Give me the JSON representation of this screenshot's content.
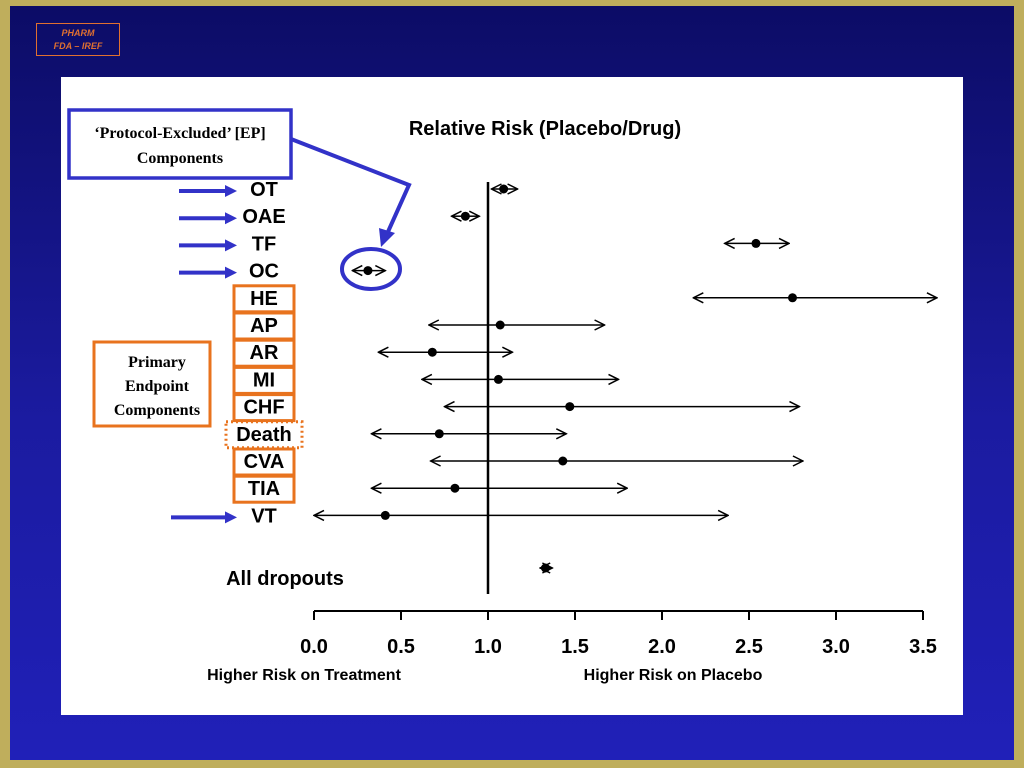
{
  "badge": {
    "line1": "PHARM",
    "line2": "FDA – IREF"
  },
  "callouts": {
    "protocol_excluded": {
      "line1": "‘Protocol-Excluded’ [EP]",
      "line2": "Components"
    },
    "primary_endpoint": {
      "line1": "Primary",
      "line2": "Endpoint",
      "line3": "Components"
    }
  },
  "colors": {
    "background": "#1b1ba0",
    "frame": "#bfae5c",
    "excluded_marker": "#3232c8",
    "primary_marker": "#e8731e"
  },
  "chart_data": {
    "type": "forest",
    "title": "Relative Risk (Placebo/Drug)",
    "xlim": [
      0.0,
      3.5
    ],
    "ticks": [
      "0.0",
      "0.5",
      "1.0",
      "1.5",
      "2.0",
      "2.5",
      "3.0",
      "3.5"
    ],
    "reference_line": 1.0,
    "xlabel_left": "Higher Risk on Treatment",
    "xlabel_right": "Higher Risk on Placebo",
    "rows": [
      {
        "label": "OT",
        "estimate": 1.09,
        "low": 1.02,
        "high": 1.17,
        "group": "excluded"
      },
      {
        "label": "OAE",
        "estimate": 0.87,
        "low": 0.79,
        "high": 0.95,
        "group": "excluded"
      },
      {
        "label": "TF",
        "estimate": 2.54,
        "low": 2.36,
        "high": 2.73,
        "group": "excluded"
      },
      {
        "label": "OC",
        "estimate": 0.31,
        "low": 0.22,
        "high": 0.41,
        "group": "excluded"
      },
      {
        "label": "HE",
        "estimate": 2.75,
        "low": 2.18,
        "high": 3.58,
        "group": "primary"
      },
      {
        "label": "AP",
        "estimate": 1.07,
        "low": 0.66,
        "high": 1.67,
        "group": "primary"
      },
      {
        "label": "AR",
        "estimate": 0.68,
        "low": 0.37,
        "high": 1.14,
        "group": "primary"
      },
      {
        "label": "MI",
        "estimate": 1.06,
        "low": 0.62,
        "high": 1.75,
        "group": "primary"
      },
      {
        "label": "CHF",
        "estimate": 1.47,
        "low": 0.75,
        "high": 2.79,
        "group": "primary"
      },
      {
        "label": "Death",
        "estimate": 0.72,
        "low": 0.33,
        "high": 1.45,
        "group": "primary-dashed"
      },
      {
        "label": "CVA",
        "estimate": 1.43,
        "low": 0.67,
        "high": 2.81,
        "group": "primary"
      },
      {
        "label": "TIA",
        "estimate": 0.81,
        "low": 0.33,
        "high": 1.8,
        "group": "primary"
      },
      {
        "label": "VT",
        "estimate": 0.41,
        "low": 0.0,
        "high": 2.38,
        "group": "excluded"
      }
    ],
    "summary": {
      "label": "All dropouts",
      "estimate": 1.33,
      "low": 1.3,
      "high": 1.37
    }
  }
}
